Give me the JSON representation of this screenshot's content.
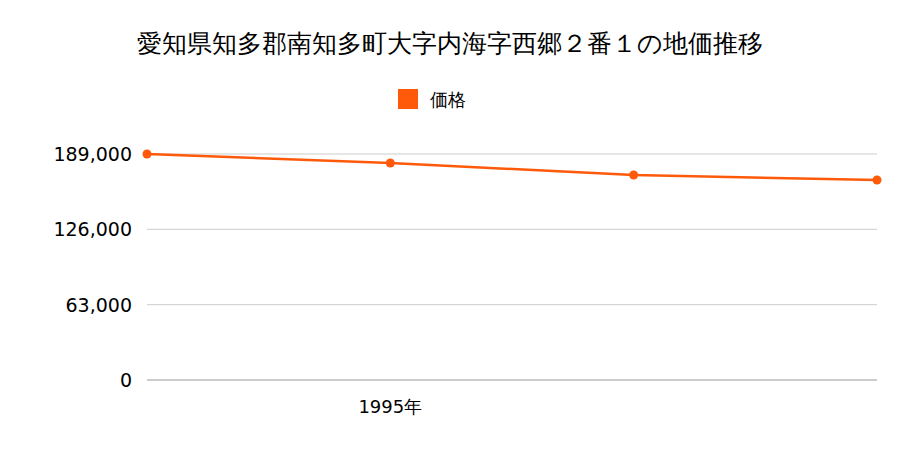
{
  "chart_data": {
    "type": "line",
    "title": "愛知県知多郡南知多町大字内海字西郷２番１の地価推移",
    "categories": [
      null,
      "1995年",
      null,
      null
    ],
    "series": [
      {
        "name": "価格",
        "color": "#ff5a0a",
        "marker": "circle",
        "values": [
          189000,
          181500,
          171400,
          167300
        ]
      }
    ],
    "ylim": [
      0,
      189000
    ],
    "yticks": [
      0,
      {
        "value": 63000,
        "label": "63,000"
      },
      {
        "value": 126000,
        "label": "126,000"
      },
      {
        "value": 189000,
        "label": "189,000"
      }
    ],
    "grid": true,
    "legend": "top"
  }
}
